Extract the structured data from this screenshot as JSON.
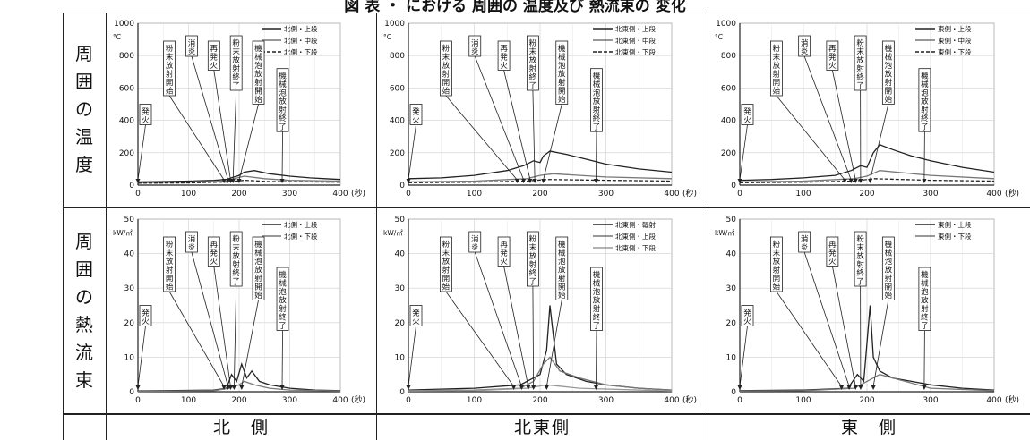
{
  "caption": "図 表 ・ における 周囲の 温度及び 熱流束の 変化",
  "row_labels": [
    {
      "chars": [
        "周",
        "囲",
        "の",
        "温",
        "度"
      ]
    },
    {
      "chars": [
        "周",
        "囲",
        "の",
        "熱",
        "流",
        "束"
      ]
    }
  ],
  "col_labels": [
    "北　側",
    "北東側",
    "東　側"
  ],
  "chart_data": [
    {
      "type": "line",
      "unit_label": "°C",
      "x_unit": "(秒)",
      "xlim": [
        0,
        400
      ],
      "ylim": [
        0,
        1000
      ],
      "xticks": [
        0,
        100,
        200,
        300,
        400
      ],
      "yticks": [
        0,
        200,
        400,
        600,
        800,
        1000
      ],
      "grid": true,
      "legend_position": "top-right",
      "series": [
        {
          "name": "北側・上段",
          "style": "solid",
          "color": "#222222",
          "x": [
            0,
            50,
            100,
            150,
            175,
            190,
            200,
            210,
            230,
            260,
            300,
            340,
            370,
            400
          ],
          "y": [
            20,
            22,
            25,
            30,
            35,
            50,
            60,
            80,
            90,
            70,
            55,
            45,
            40,
            35
          ]
        },
        {
          "name": "北側・中段",
          "style": "solid",
          "color": "#777777",
          "x": [
            0,
            100,
            175,
            190,
            210,
            250,
            300,
            400
          ],
          "y": [
            15,
            18,
            25,
            40,
            55,
            40,
            30,
            25
          ]
        },
        {
          "name": "北側・下段",
          "style": "dashed",
          "color": "#222222",
          "x": [
            0,
            100,
            180,
            210,
            260,
            400
          ],
          "y": [
            12,
            14,
            20,
            30,
            22,
            18
          ]
        }
      ],
      "annotations": [
        {
          "text": "発火",
          "x": 0
        },
        {
          "text": "粉末放射開始",
          "x": 170
        },
        {
          "text": "消炎",
          "x": 178
        },
        {
          "text": "再発火",
          "x": 183
        },
        {
          "text": "粉末放射終了",
          "x": 188
        },
        {
          "text": "機械泡放射開始",
          "x": 200
        },
        {
          "text": "機械泡放射終了",
          "x": 285
        }
      ]
    },
    {
      "type": "line",
      "unit_label": "°C",
      "x_unit": "(秒)",
      "xlim": [
        0,
        400
      ],
      "ylim": [
        0,
        1000
      ],
      "xticks": [
        0,
        100,
        200,
        300,
        400
      ],
      "yticks": [
        0,
        200,
        400,
        600,
        800,
        1000
      ],
      "grid": true,
      "legend_position": "top-right",
      "series": [
        {
          "name": "北東側・上段",
          "style": "solid",
          "color": "#222222",
          "x": [
            0,
            50,
            100,
            150,
            175,
            190,
            200,
            205,
            215,
            240,
            270,
            300,
            350,
            400
          ],
          "y": [
            40,
            45,
            60,
            90,
            120,
            150,
            140,
            180,
            210,
            190,
            160,
            130,
            100,
            80
          ]
        },
        {
          "name": "北東側・中段",
          "style": "solid",
          "color": "#777777",
          "x": [
            0,
            100,
            180,
            200,
            220,
            300,
            400
          ],
          "y": [
            20,
            25,
            40,
            60,
            70,
            50,
            40
          ]
        },
        {
          "name": "北東側・下段",
          "style": "dashed",
          "color": "#222222",
          "x": [
            0,
            100,
            180,
            210,
            300,
            400
          ],
          "y": [
            15,
            18,
            25,
            35,
            30,
            25
          ]
        }
      ],
      "annotations": [
        {
          "text": "発火",
          "x": 0
        },
        {
          "text": "粉末放射開始",
          "x": 165
        },
        {
          "text": "消炎",
          "x": 175
        },
        {
          "text": "再発火",
          "x": 185
        },
        {
          "text": "粉末放射終了",
          "x": 192
        },
        {
          "text": "機械泡放射開始",
          "x": 205
        },
        {
          "text": "機械泡放射終了",
          "x": 285
        }
      ]
    },
    {
      "type": "line",
      "unit_label": "°C",
      "x_unit": "(秒)",
      "xlim": [
        0,
        400
      ],
      "ylim": [
        0,
        1000
      ],
      "xticks": [
        0,
        100,
        200,
        300,
        400
      ],
      "yticks": [
        0,
        200,
        400,
        600,
        800,
        1000
      ],
      "grid": true,
      "legend_position": "top-right",
      "series": [
        {
          "name": "東側・上段",
          "style": "solid",
          "color": "#222222",
          "x": [
            0,
            50,
            100,
            150,
            175,
            190,
            200,
            210,
            220,
            240,
            270,
            300,
            350,
            400
          ],
          "y": [
            30,
            35,
            45,
            60,
            90,
            120,
            110,
            200,
            250,
            220,
            180,
            150,
            110,
            80
          ]
        },
        {
          "name": "東側・中段",
          "style": "solid",
          "color": "#777777",
          "x": [
            0,
            100,
            180,
            200,
            220,
            300,
            400
          ],
          "y": [
            20,
            25,
            40,
            55,
            90,
            60,
            40
          ]
        },
        {
          "name": "東側・下段",
          "style": "dashed",
          "color": "#222222",
          "x": [
            0,
            100,
            180,
            210,
            300,
            400
          ],
          "y": [
            15,
            18,
            25,
            40,
            30,
            25
          ]
        }
      ],
      "annotations": [
        {
          "text": "発火",
          "x": 0
        },
        {
          "text": "粉末放射開始",
          "x": 165
        },
        {
          "text": "消炎",
          "x": 175
        },
        {
          "text": "再発火",
          "x": 182
        },
        {
          "text": "粉末放射終了",
          "x": 190
        },
        {
          "text": "機械泡放射開始",
          "x": 205
        },
        {
          "text": "機械泡放射終了",
          "x": 290
        }
      ]
    },
    {
      "type": "line",
      "unit_label": "kW/㎡",
      "x_unit": "(秒)",
      "xlim": [
        0,
        400
      ],
      "ylim": [
        0,
        50
      ],
      "xticks": [
        0,
        100,
        200,
        300,
        400
      ],
      "yticks": [
        0,
        10,
        20,
        30,
        40,
        50
      ],
      "grid": true,
      "legend_position": "top-right",
      "series": [
        {
          "name": "北側・上段",
          "style": "solid",
          "color": "#222222",
          "x": [
            0,
            150,
            175,
            185,
            195,
            205,
            215,
            225,
            240,
            260,
            300,
            350,
            400
          ],
          "y": [
            0.2,
            0.5,
            1,
            5,
            3,
            8,
            4,
            6,
            3,
            2,
            1,
            0.5,
            0.3
          ]
        },
        {
          "name": "北側・下段",
          "style": "solid",
          "color": "#777777",
          "x": [
            0,
            150,
            180,
            200,
            210,
            230,
            260,
            300,
            400
          ],
          "y": [
            0.1,
            0.3,
            1,
            2,
            3,
            2,
            1,
            0.5,
            0.2
          ]
        }
      ],
      "annotations": [
        {
          "text": "発火",
          "x": 0
        },
        {
          "text": "粉末放射開始",
          "x": 170
        },
        {
          "text": "消炎",
          "x": 178
        },
        {
          "text": "再発火",
          "x": 183
        },
        {
          "text": "粉末放射終了",
          "x": 190
        },
        {
          "text": "機械泡放射開始",
          "x": 205
        },
        {
          "text": "機械泡放射終了",
          "x": 285
        }
      ]
    },
    {
      "type": "line",
      "unit_label": "kW/㎡",
      "x_unit": "(秒)",
      "xlim": [
        0,
        400
      ],
      "ylim": [
        0,
        50
      ],
      "xticks": [
        0,
        100,
        200,
        300,
        400
      ],
      "yticks": [
        0,
        10,
        20,
        30,
        40,
        50
      ],
      "grid": true,
      "legend_position": "top-right",
      "series": [
        {
          "name": "北東側・輻射",
          "style": "solid",
          "color": "#222222",
          "x": [
            0,
            100,
            170,
            190,
            200,
            210,
            215,
            225,
            240,
            270,
            300,
            350,
            400
          ],
          "y": [
            0.5,
            1,
            2,
            4,
            5,
            12,
            25,
            8,
            5,
            3,
            2,
            1,
            0.5
          ]
        },
        {
          "name": "北東側・上段",
          "style": "solid",
          "color": "#777777",
          "x": [
            0,
            100,
            170,
            190,
            205,
            215,
            230,
            260,
            300,
            350,
            400
          ],
          "y": [
            0.3,
            0.5,
            1,
            3,
            8,
            10,
            6,
            4,
            2,
            1,
            0.5
          ]
        },
        {
          "name": "北東側・下段",
          "style": "solid",
          "color": "#999999",
          "x": [
            0,
            100,
            180,
            210,
            260,
            400
          ],
          "y": [
            0.2,
            0.3,
            1,
            2,
            1,
            0.2
          ]
        }
      ],
      "annotations": [
        {
          "text": "発火",
          "x": 0
        },
        {
          "text": "粉末放射開始",
          "x": 160
        },
        {
          "text": "消炎",
          "x": 172
        },
        {
          "text": "再発火",
          "x": 182
        },
        {
          "text": "粉末放射終了",
          "x": 190
        },
        {
          "text": "機械泡放射開始",
          "x": 210
        },
        {
          "text": "機械泡放射終了",
          "x": 285
        }
      ]
    },
    {
      "type": "line",
      "unit_label": "kW/㎡",
      "x_unit": "(秒)",
      "xlim": [
        0,
        400
      ],
      "ylim": [
        0,
        50
      ],
      "xticks": [
        0,
        100,
        200,
        300,
        400
      ],
      "yticks": [
        0,
        10,
        20,
        30,
        40,
        50
      ],
      "grid": true,
      "legend_position": "top-right",
      "series": [
        {
          "name": "東側・上段",
          "style": "solid",
          "color": "#222222",
          "x": [
            0,
            100,
            170,
            185,
            195,
            205,
            210,
            220,
            240,
            270,
            300,
            350,
            400
          ],
          "y": [
            0.3,
            0.5,
            1,
            5,
            3,
            25,
            10,
            6,
            4,
            3,
            2,
            1,
            0.5
          ]
        },
        {
          "name": "東側・下段",
          "style": "solid",
          "color": "#777777",
          "x": [
            0,
            100,
            180,
            200,
            220,
            260,
            300,
            400
          ],
          "y": [
            0.2,
            0.3,
            1,
            3,
            5,
            3,
            1,
            0.3
          ]
        }
      ],
      "annotations": [
        {
          "text": "発火",
          "x": 0
        },
        {
          "text": "粉末放射開始",
          "x": 160
        },
        {
          "text": "消炎",
          "x": 172
        },
        {
          "text": "再発火",
          "x": 182
        },
        {
          "text": "粉末放射終了",
          "x": 190
        },
        {
          "text": "機械泡放射開始",
          "x": 210
        },
        {
          "text": "機械泡放射終了",
          "x": 290
        }
      ]
    }
  ]
}
